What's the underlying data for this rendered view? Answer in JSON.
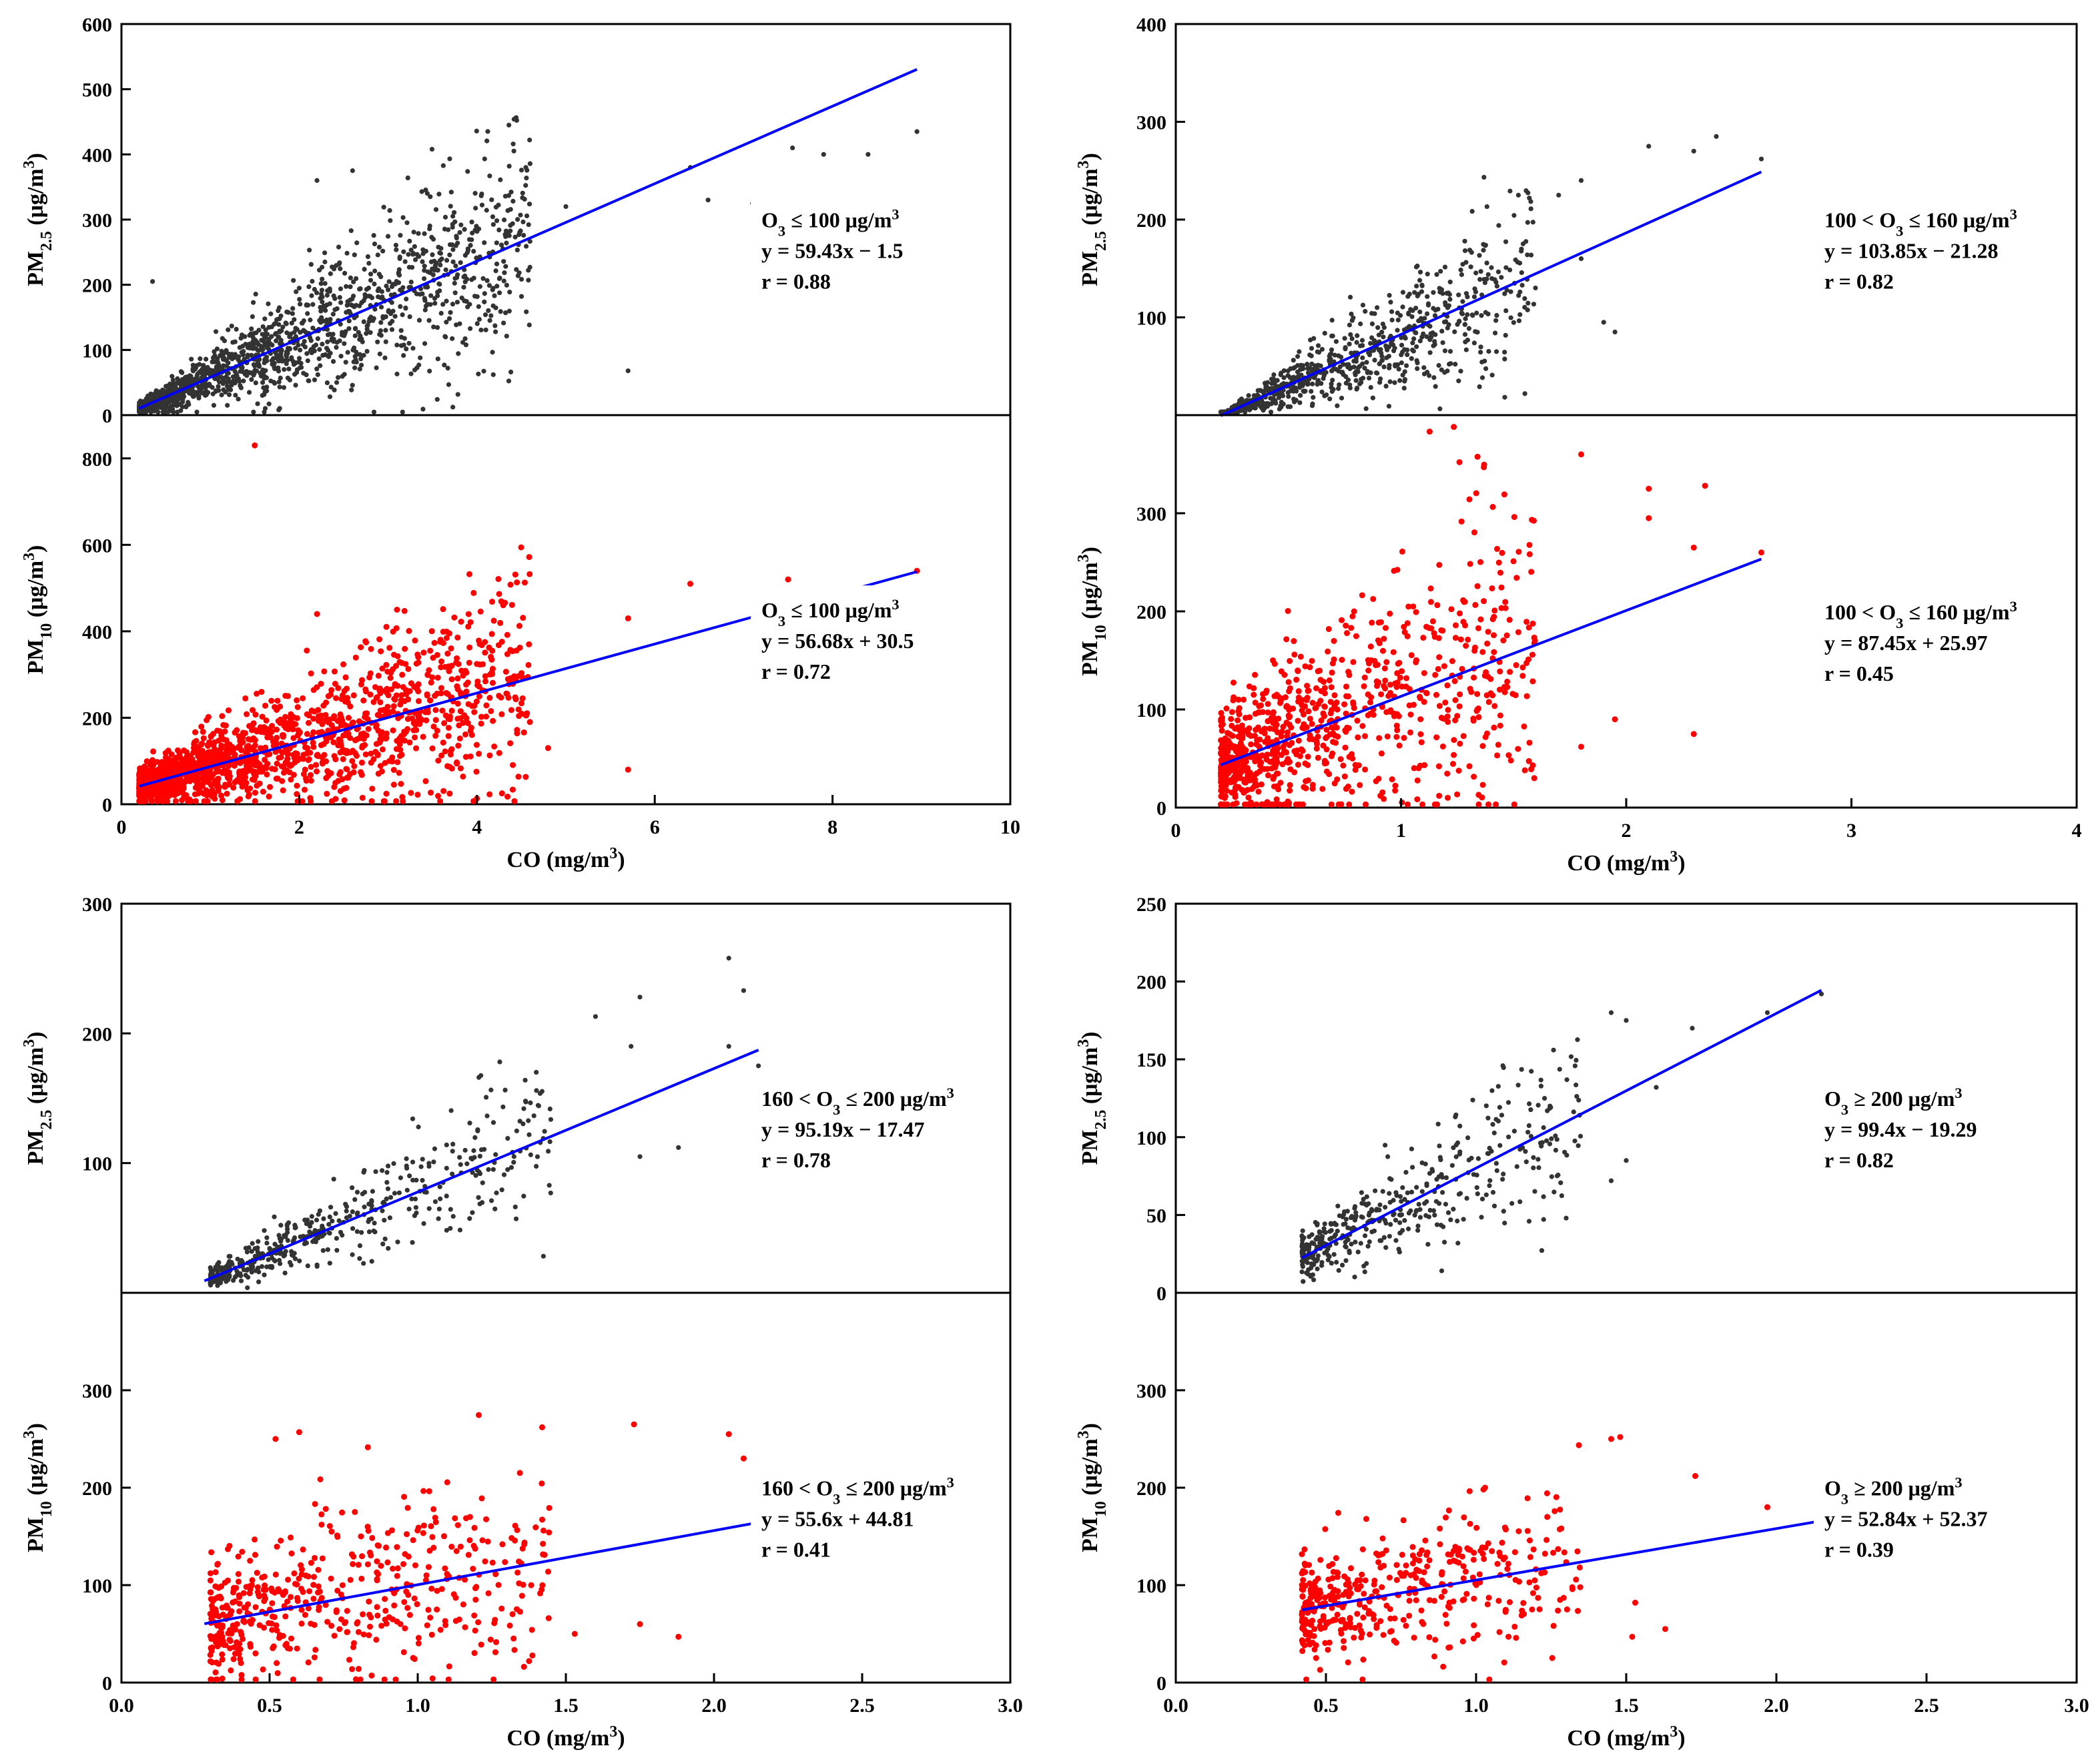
{
  "chart_data": [
    {
      "name": "top-left",
      "type": "scatter",
      "xlabel": "CO (mg/m3)",
      "xlim": [
        0,
        10
      ],
      "xticks": [
        "0",
        "2",
        "4",
        "6",
        "8",
        "10"
      ],
      "subplots": [
        {
          "series_name": "PM2.5",
          "ylabel": "PM2.5 (μg/m3)",
          "ylim": [
            0,
            600
          ],
          "yticks": [
            0,
            100,
            200,
            300,
            400,
            500,
            600
          ],
          "point_color": "#333333",
          "line_color": "#0000ff",
          "fit": {
            "slope": 59.43,
            "intercept": -1.5,
            "x_range": [
              0.2,
              8.95
            ]
          },
          "annotation": [
            "O₃ ≤ 100 μg/m³",
            "y = 59.43x − 1.5",
            "r = 0.88"
          ],
          "highlighted_points": [
            [
              0.35,
              205
            ],
            [
              2.2,
              360
            ],
            [
              2.6,
              375
            ],
            [
              6.4,
              380
            ],
            [
              6.6,
              330
            ],
            [
              7.1,
              325
            ],
            [
              7.55,
              410
            ],
            [
              7.9,
              400
            ],
            [
              8.4,
              400
            ],
            [
              8.95,
              435
            ],
            [
              5.7,
              68
            ],
            [
              5.0,
              320
            ]
          ],
          "sample_points": {
            "count": 1600,
            "x_range": [
              0.2,
              4.6
            ],
            "spread": 0.35
          }
        },
        {
          "series_name": "PM10",
          "ylabel": "PM10 (μg/m3)",
          "ylim": [
            0,
            900
          ],
          "yticks": [
            0,
            200,
            400,
            600,
            800
          ],
          "point_color": "#ff0000",
          "line_color": "#0000ff",
          "fit": {
            "slope": 56.68,
            "intercept": 30.5,
            "x_range": [
              0.2,
              8.95
            ]
          },
          "annotation": [
            "O₃ ≤ 100 μg/m³",
            "y = 56.68x + 30.5",
            "r = 0.72"
          ],
          "highlighted_points": [
            [
              1.5,
              830
            ],
            [
              6.4,
              510
            ],
            [
              7.5,
              520
            ],
            [
              8.0,
              440
            ],
            [
              8.95,
              540
            ],
            [
              5.7,
              80
            ],
            [
              4.8,
              130
            ],
            [
              5.7,
              430
            ],
            [
              2.2,
              440
            ],
            [
              3.1,
              450
            ]
          ],
          "sample_points": {
            "count": 1600,
            "x_range": [
              0.2,
              4.6
            ],
            "spread": 0.45
          }
        }
      ]
    },
    {
      "name": "top-right",
      "type": "scatter",
      "xlabel": "CO (mg/m3)",
      "xlim": [
        0,
        4
      ],
      "xticks": [
        "0",
        "1",
        "2",
        "3",
        "4"
      ],
      "subplots": [
        {
          "series_name": "PM2.5",
          "ylabel": "PM2.5 (μg/m3)",
          "ylim": [
            0,
            400
          ],
          "yticks": [
            100,
            200,
            300,
            400
          ],
          "point_color": "#333333",
          "line_color": "#0000ff",
          "fit": {
            "slope": 103.85,
            "intercept": -21.28,
            "x_range": [
              0.2,
              2.6
            ]
          },
          "annotation": [
            "100 < O₃ ≤ 160 μg/m³",
            "y = 103.85x − 21.28",
            "r = 0.82"
          ],
          "highlighted_points": [
            [
              2.1,
              275
            ],
            [
              2.3,
              270
            ],
            [
              2.4,
              285
            ],
            [
              2.6,
              262
            ],
            [
              1.8,
              240
            ],
            [
              1.7,
              225
            ],
            [
              1.9,
              95
            ],
            [
              1.95,
              85
            ],
            [
              1.55,
              22
            ],
            [
              1.8,
              160
            ]
          ],
          "sample_points": {
            "count": 900,
            "x_range": [
              0.2,
              1.6
            ],
            "spread": 0.35
          }
        },
        {
          "series_name": "PM10",
          "ylabel": "PM10 (μg/m3)",
          "ylim": [
            0,
            400
          ],
          "yticks": [
            0,
            100,
            200,
            300
          ],
          "point_color": "#ff0000",
          "line_color": "#0000ff",
          "fit": {
            "slope": 87.45,
            "intercept": 25.97,
            "x_range": [
              0.2,
              2.6
            ]
          },
          "annotation": [
            "100 < O₃ ≤ 160 μg/m³",
            "y = 87.45x + 25.97",
            "r = 0.45"
          ],
          "highlighted_points": [
            [
              1.8,
              360
            ],
            [
              2.1,
              325
            ],
            [
              2.35,
              328
            ],
            [
              2.3,
              265
            ],
            [
              2.6,
              260
            ],
            [
              2.1,
              295
            ],
            [
              2.3,
              75
            ],
            [
              1.95,
              90
            ],
            [
              1.8,
              62
            ],
            [
              1.55,
              38
            ]
          ],
          "sample_points": {
            "count": 900,
            "x_range": [
              0.2,
              1.6
            ],
            "spread": 0.55
          }
        }
      ]
    },
    {
      "name": "bottom-left",
      "type": "scatter",
      "xlabel": "CO (mg/m3)",
      "xlim": [
        0,
        3
      ],
      "xticks": [
        "0.0",
        "0.5",
        "1.0",
        "1.5",
        "2.0",
        "2.5",
        "3.0"
      ],
      "subplots": [
        {
          "series_name": "PM2.5",
          "ylabel": "PM2.5 (μg/m3)",
          "ylim": [
            0,
            300
          ],
          "yticks": [
            100,
            200,
            300
          ],
          "point_color": "#333333",
          "line_color": "#0000ff",
          "fit": {
            "slope": 95.19,
            "intercept": -17.47,
            "x_range": [
              0.28,
              2.15
            ]
          },
          "annotation": [
            "160 < O₃ ≤ 200 μg/m³",
            "y = 95.19x − 17.47",
            "r = 0.78"
          ],
          "highlighted_points": [
            [
              2.05,
              258
            ],
            [
              2.1,
              233
            ],
            [
              1.75,
              228
            ],
            [
              1.6,
              213
            ],
            [
              1.72,
              190
            ],
            [
              2.05,
              190
            ],
            [
              2.15,
              175
            ],
            [
              1.4,
              170
            ],
            [
              1.75,
              105
            ],
            [
              1.88,
              112
            ]
          ],
          "sample_points": {
            "count": 500,
            "x_range": [
              0.3,
              1.45
            ],
            "spread": 0.3
          }
        },
        {
          "series_name": "PM10",
          "ylabel": "PM10 (μg/m3)",
          "ylim": [
            0,
            400
          ],
          "yticks": [
            0,
            100,
            200,
            300
          ],
          "point_color": "#ff0000",
          "line_color": "#0000ff",
          "fit": {
            "slope": 55.6,
            "intercept": 44.81,
            "x_range": [
              0.28,
              2.15
            ]
          },
          "annotation": [
            "160 < O₃ ≤ 200 μg/m³",
            "y = 55.6x + 44.81",
            "r = 0.41"
          ],
          "highlighted_points": [
            [
              1.73,
              265
            ],
            [
              2.05,
              255
            ],
            [
              1.42,
              262
            ],
            [
              2.1,
              230
            ],
            [
              2.15,
              208
            ],
            [
              0.6,
              257
            ],
            [
              0.52,
              250
            ],
            [
              1.88,
              47
            ],
            [
              1.75,
              60
            ],
            [
              1.53,
              50
            ]
          ],
          "sample_points": {
            "count": 500,
            "x_range": [
              0.3,
              1.45
            ],
            "spread": 0.5
          }
        }
      ]
    },
    {
      "name": "bottom-right",
      "type": "scatter",
      "xlabel": "CO (mg/m3)",
      "xlim": [
        0,
        3
      ],
      "xticks": [
        "0.0",
        "0.5",
        "1.0",
        "1.5",
        "2.0",
        "2.5",
        "3.0"
      ],
      "subplots": [
        {
          "series_name": "PM2.5",
          "ylabel": "PM2.5 (μg/m3)",
          "ylim": [
            0,
            250
          ],
          "yticks": [
            0,
            50,
            100,
            150,
            200,
            250
          ],
          "point_color": "#333333",
          "line_color": "#0000ff",
          "fit": {
            "slope": 99.4,
            "intercept": -19.29,
            "x_range": [
              0.42,
              2.15
            ]
          },
          "annotation": [
            "O₃ ≥ 200 μg/m³",
            "y = 99.4x − 19.29",
            "r = 0.82"
          ],
          "highlighted_points": [
            [
              1.45,
              180
            ],
            [
              1.5,
              175
            ],
            [
              1.72,
              170
            ],
            [
              1.97,
              180
            ],
            [
              2.15,
              192
            ],
            [
              1.6,
              132
            ],
            [
              1.5,
              85
            ],
            [
              1.45,
              72
            ],
            [
              1.3,
              48
            ]
          ],
          "sample_points": {
            "count": 420,
            "x_range": [
              0.42,
              1.35
            ],
            "spread": 0.3
          }
        },
        {
          "series_name": "PM10",
          "ylabel": "PM10 (μg/m3)",
          "ylim": [
            0,
            400
          ],
          "yticks": [
            0,
            100,
            200,
            300
          ],
          "point_color": "#ff0000",
          "line_color": "#0000ff",
          "fit": {
            "slope": 52.84,
            "intercept": 52.37,
            "x_range": [
              0.42,
              2.15
            ]
          },
          "annotation": [
            "O₃ ≥ 200 μg/m³",
            "y = 52.84x + 52.37",
            "r = 0.39"
          ],
          "highlighted_points": [
            [
              1.45,
              250
            ],
            [
              1.48,
              252
            ],
            [
              1.73,
              212
            ],
            [
              1.97,
              180
            ],
            [
              1.03,
              200
            ],
            [
              2.15,
              155
            ],
            [
              1.53,
              82
            ],
            [
              1.52,
              47
            ],
            [
              1.63,
              55
            ]
          ],
          "sample_points": {
            "count": 420,
            "x_range": [
              0.42,
              1.35
            ],
            "spread": 0.35
          }
        }
      ]
    }
  ]
}
